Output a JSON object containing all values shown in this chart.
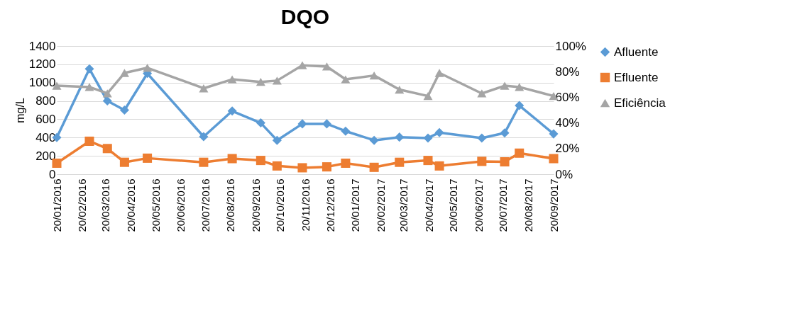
{
  "chart_data": {
    "type": "line",
    "title": "DQO",
    "ylabel": "mg/L",
    "x": [
      "2016-01-20",
      "2016-02-29",
      "2016-03-22",
      "2016-04-12",
      "2016-05-10",
      "2016-07-18",
      "2016-08-22",
      "2016-09-26",
      "2016-10-16",
      "2016-11-16",
      "2016-12-16",
      "2017-01-08",
      "2017-02-12",
      "2017-03-15",
      "2017-04-19",
      "2017-05-03",
      "2017-06-24",
      "2017-07-22",
      "2017-08-09",
      "2017-09-20"
    ],
    "series": [
      {
        "name": "Afluente",
        "color": "#5b9bd5",
        "marker": "diamond",
        "values": [
          400,
          1150,
          800,
          700,
          1100,
          410,
          690,
          560,
          370,
          550,
          550,
          470,
          370,
          405,
          395,
          455,
          395,
          450,
          750,
          440
        ]
      },
      {
        "name": "Efluente",
        "color": "#ed7d31",
        "marker": "square",
        "values": [
          120,
          360,
          280,
          130,
          175,
          130,
          170,
          150,
          90,
          70,
          80,
          120,
          75,
          130,
          150,
          90,
          140,
          135,
          230,
          170
        ]
      },
      {
        "name": "Eficiência",
        "color": "#a5a5a5",
        "marker": "triangle",
        "axis": "y2",
        "values": [
          69,
          68,
          63,
          79,
          83,
          67,
          74,
          72,
          73,
          85,
          84,
          74,
          77,
          66,
          61,
          79,
          63,
          69,
          68,
          61
        ]
      }
    ],
    "xlim": [
      "2016-01-20",
      "2017-09-20"
    ],
    "xticks": [
      {
        "value": "2016-01-20",
        "label": "20/01/2016"
      },
      {
        "value": "2016-02-20",
        "label": "20/02/2016"
      },
      {
        "value": "2016-03-20",
        "label": "20/03/2016"
      },
      {
        "value": "2016-04-20",
        "label": "20/04/2016"
      },
      {
        "value": "2016-05-20",
        "label": "20/05/2016"
      },
      {
        "value": "2016-06-20",
        "label": "20/06/2016"
      },
      {
        "value": "2016-07-20",
        "label": "20/07/2016"
      },
      {
        "value": "2016-08-20",
        "label": "20/08/2016"
      },
      {
        "value": "2016-09-20",
        "label": "20/09/2016"
      },
      {
        "value": "2016-10-20",
        "label": "20/10/2016"
      },
      {
        "value": "2016-11-20",
        "label": "20/11/2016"
      },
      {
        "value": "2016-12-20",
        "label": "20/12/2016"
      },
      {
        "value": "2017-01-20",
        "label": "20/01/2017"
      },
      {
        "value": "2017-02-20",
        "label": "20/02/2017"
      },
      {
        "value": "2017-03-20",
        "label": "20/03/2017"
      },
      {
        "value": "2017-04-20",
        "label": "20/04/2017"
      },
      {
        "value": "2017-05-20",
        "label": "20/05/2017"
      },
      {
        "value": "2017-06-20",
        "label": "20/06/2017"
      },
      {
        "value": "2017-07-20",
        "label": "20/07/2017"
      },
      {
        "value": "2017-08-20",
        "label": "20/08/2017"
      },
      {
        "value": "2017-09-20",
        "label": "20/09/2017"
      }
    ],
    "ylim": [
      0,
      1400
    ],
    "yticks": [
      0,
      200,
      400,
      600,
      800,
      1000,
      1200,
      1400
    ],
    "y2lim": [
      0,
      100
    ],
    "y2ticks": [
      {
        "value": 0,
        "label": "0%"
      },
      {
        "value": 20,
        "label": "20%"
      },
      {
        "value": 40,
        "label": "40%"
      },
      {
        "value": 60,
        "label": "60%"
      },
      {
        "value": 80,
        "label": "80%"
      },
      {
        "value": 100,
        "label": "100%"
      }
    ],
    "grid": "y",
    "legend": "right",
    "line_style": "solid"
  }
}
